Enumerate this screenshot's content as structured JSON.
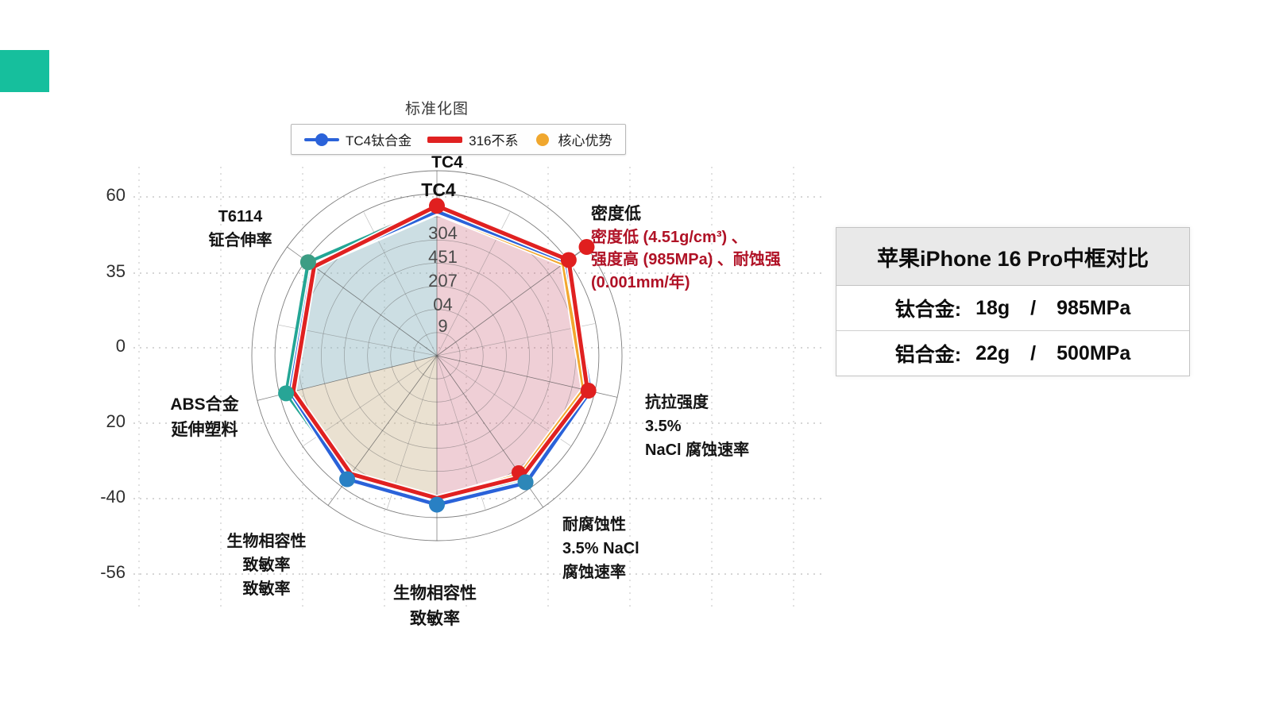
{
  "accent_swatch": {
    "color": "#16bf9d"
  },
  "chart": {
    "title": "标准化图",
    "legend": [
      {
        "label": "TC4钛合金",
        "color": "#2a62d9",
        "swatch": "line-dot"
      },
      {
        "label": "316不系",
        "color": "#e02121",
        "swatch": "thick-line"
      },
      {
        "label": "核心优势",
        "color": "#f0a72e",
        "swatch": "dot"
      }
    ],
    "yticks": [
      "60",
      "35",
      "0",
      "20",
      "-40",
      "-56"
    ],
    "ring_labels": [
      "304",
      "451",
      "207",
      "04",
      "9"
    ],
    "labels": {
      "top1": "TC4",
      "top2": "TC4",
      "upper_left": "T6114\n钲合伸率",
      "left": "ABS合金\n延伸塑料",
      "lower_left": "生物相容性\n致敏率\n致敏率",
      "bottom": "生物相容性\n致敏率",
      "lower_right": "耐腐蚀性\n3.5% NaCl\n腐蚀速率",
      "right": "抗拉强度\n3.5%\nNaCl 腐蚀速率",
      "upper_right_black": "密度低",
      "upper_right_red": "密度低 (4.51g/cm³) 、\n强度高 (985MPa) 、耐蚀强\n(0.001mm/年)"
    }
  },
  "chart_data": {
    "type": "radar",
    "title": "标准化图",
    "axes": [
      "TC4",
      "密度低",
      "抗拉强度 3.5% NaCl 腐蚀速率",
      "耐腐蚀性 3.5% NaCl 腐蚀速率",
      "生物相容性 致敏率",
      "生物相容性 致敏率 致敏率",
      "ABS合金 延伸塑料",
      "T6114 钲合伸率"
    ],
    "angles_deg": [
      -90,
      -36,
      13,
      55,
      90,
      126,
      166,
      -144
    ],
    "center": [
      550,
      448
    ],
    "radius": 233,
    "rings": 8,
    "yaxis_ticks": [
      60,
      35,
      0,
      20,
      -40,
      -56
    ],
    "radial_value_labels": [
      "304",
      "451",
      "207",
      "04",
      "9"
    ],
    "series": [
      {
        "name": "green-trace",
        "color": "#1e8449",
        "width": 3.5,
        "values": [
          0.79,
          0.85,
          0.81,
          0.81,
          0.78,
          0.8,
          0.825,
          0.845
        ]
      },
      {
        "name": "teal-trace",
        "color": "#23a695",
        "width": 4,
        "values": [
          0.805,
          0.86,
          0.82,
          0.83,
          0.79,
          0.815,
          0.84,
          0.86
        ]
      },
      {
        "name": "核心优势",
        "color": "#f2a72e",
        "width": 4.5,
        "values": [
          0.775,
          0.845,
          0.815,
          0.785,
          0.775,
          0.79,
          0.81,
          0.825
        ]
      },
      {
        "name": "TC4钛合金",
        "color": "#2a62d9",
        "width": 4.5,
        "values": [
          0.78,
          0.865,
          0.85,
          0.84,
          0.805,
          0.825,
          0.815,
          0.83
        ]
      },
      {
        "name": "316不系",
        "color": "#e02121",
        "width": 5,
        "values": [
          0.81,
          0.88,
          0.835,
          0.8,
          0.77,
          0.79,
          0.8,
          0.82
        ]
      }
    ],
    "fills": [
      {
        "series": "316不系",
        "axes": [
          0,
          1,
          2,
          3,
          4
        ],
        "color": "rgba(203,95,120,0.30)"
      },
      {
        "series": "teal-trace",
        "axes": [
          6,
          7,
          0
        ],
        "color": "rgba(141,181,192,0.45)"
      },
      {
        "series": "核心优势",
        "axes": [
          4,
          5,
          6
        ],
        "color": "rgba(206,183,146,0.42)"
      }
    ],
    "markers": [
      {
        "axis": 0,
        "f": 0.81,
        "color": "#e01f1f",
        "r": 10
      },
      {
        "axis": 1,
        "f": 0.88,
        "color": "#e01f1f",
        "r": 10
      },
      {
        "axis": 1,
        "f": 1.0,
        "color": "#e01f1f",
        "r": 10
      },
      {
        "axis": 2,
        "f": 0.84,
        "color": "#e01f1f",
        "r": 10
      },
      {
        "axis": 3,
        "f": 0.77,
        "color": "#e01f1f",
        "r": 9
      },
      {
        "axis": 3,
        "f": 0.835,
        "color": "#2d87b8",
        "r": 10
      },
      {
        "axis": 4,
        "f": 0.805,
        "color": "#2980c4",
        "r": 10
      },
      {
        "axis": 5,
        "f": 0.825,
        "color": "#2980c4",
        "r": 10
      },
      {
        "axis": 6,
        "f": 0.84,
        "color": "#27a596",
        "r": 10
      },
      {
        "axis": 7,
        "f": 0.86,
        "color": "#3d9d84",
        "r": 10
      }
    ],
    "outlier_connector": {
      "axis": 1,
      "from": 0.88,
      "to": 1.0
    },
    "grid": {
      "h_lines": [
        248,
        344,
        438,
        533,
        628,
        723
      ],
      "v_lines": [
        175,
        278,
        381,
        484,
        587,
        690,
        793,
        896,
        999
      ],
      "x_range": [
        168,
        1040
      ],
      "y_range": [
        210,
        768
      ]
    },
    "legend_position": "top",
    "grid_on": true
  },
  "table": {
    "title": "苹果iPhone 16 Pro中框对比",
    "rows": [
      {
        "material": "钛合金:",
        "weight": "18g",
        "sep": "/",
        "strength": "985MPa"
      },
      {
        "material": "铝合金:",
        "weight": "22g",
        "sep": "/",
        "strength": "500MPa"
      }
    ]
  }
}
